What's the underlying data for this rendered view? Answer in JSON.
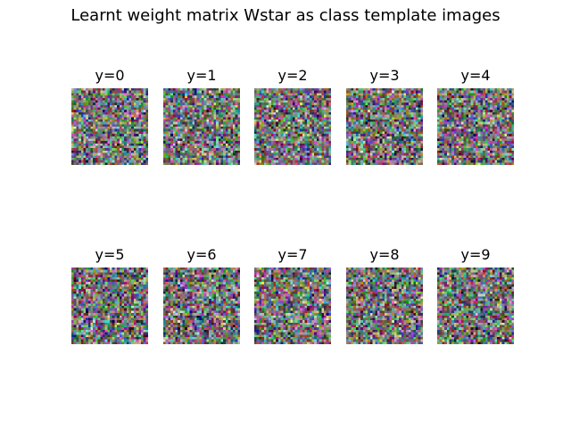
{
  "figure": {
    "title": "Learnt weight matrix Wstar as class template images"
  },
  "panels": [
    {
      "label": "y=0"
    },
    {
      "label": "y=1"
    },
    {
      "label": "y=2"
    },
    {
      "label": "y=3"
    },
    {
      "label": "y=4"
    },
    {
      "label": "y=5"
    },
    {
      "label": "y=6"
    },
    {
      "label": "y=7"
    },
    {
      "label": "y=8"
    },
    {
      "label": "y=9"
    }
  ],
  "image_content": "random-noise-rgb-32x32"
}
